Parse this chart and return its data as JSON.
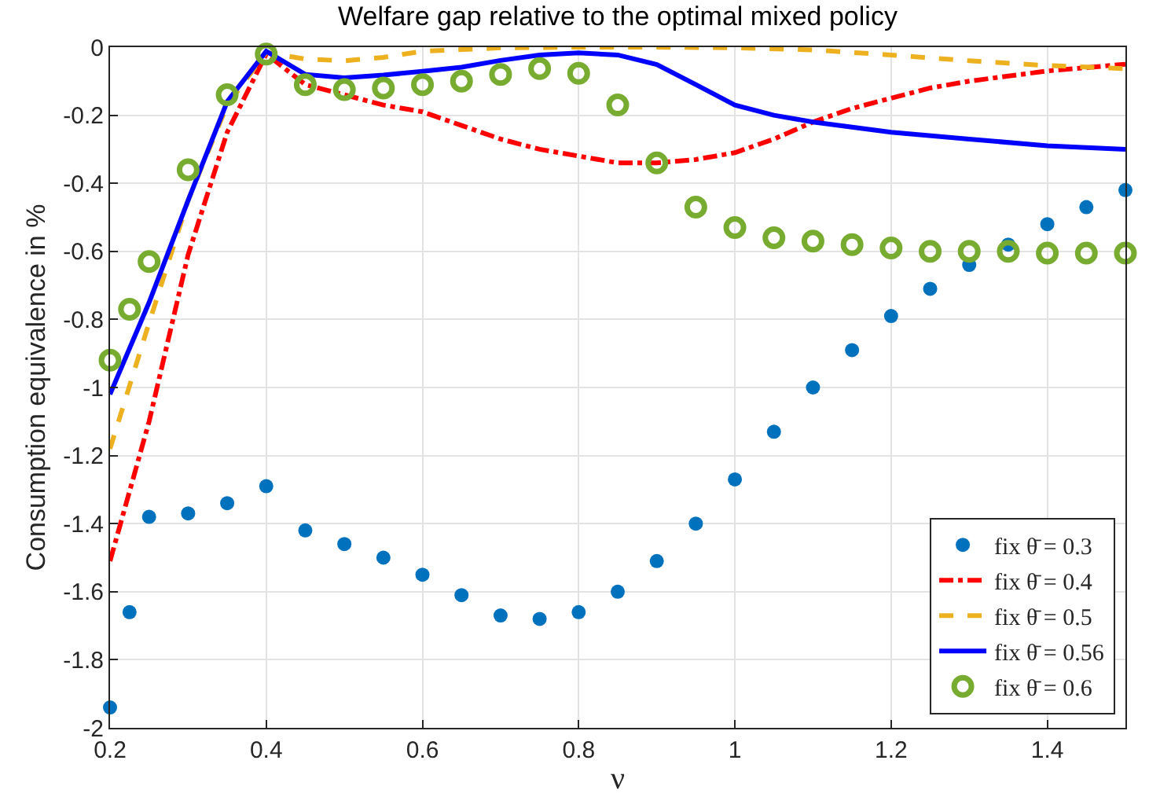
{
  "chart_data": {
    "type": "line",
    "title": "Welfare gap relative to the optimal mixed policy",
    "xlabel": "ν",
    "ylabel": "Consumption equivalence in %",
    "xlim": [
      0.2,
      1.5
    ],
    "ylim": [
      -2,
      0
    ],
    "xticks": [
      0.2,
      0.4,
      0.6,
      0.8,
      1,
      1.2,
      1.4
    ],
    "yticks": [
      -2,
      -1.8,
      -1.6,
      -1.4,
      -1.2,
      -1,
      -0.8,
      -0.6,
      -0.4,
      -0.2,
      0
    ],
    "grid": true,
    "legend": "bottom right",
    "series": [
      {
        "name": "fix θ̄ = 0.3",
        "type": "scatter",
        "marker": "circle",
        "color": "#0072bd",
        "x": [
          0.2,
          0.225,
          0.25,
          0.3,
          0.35,
          0.4,
          0.45,
          0.5,
          0.55,
          0.6,
          0.65,
          0.7,
          0.75,
          0.8,
          0.85,
          0.9,
          0.95,
          1.0,
          1.05,
          1.1,
          1.15,
          1.2,
          1.25,
          1.3,
          1.35,
          1.4,
          1.45,
          1.5
        ],
        "values": [
          -1.94,
          -1.66,
          -1.38,
          -1.37,
          -1.34,
          -1.29,
          -1.42,
          -1.46,
          -1.5,
          -1.55,
          -1.61,
          -1.67,
          -1.68,
          -1.66,
          -1.6,
          -1.51,
          -1.4,
          -1.27,
          -1.13,
          -1.0,
          -0.89,
          -0.79,
          -0.71,
          -0.64,
          -0.58,
          -0.52,
          -0.47,
          -0.42
        ]
      },
      {
        "name": "fix θ̄ = 0.4",
        "line_style": "dashdot",
        "color": "#ff0000",
        "x": [
          0.2,
          0.25,
          0.3,
          0.35,
          0.4,
          0.45,
          0.5,
          0.55,
          0.6,
          0.65,
          0.7,
          0.75,
          0.8,
          0.85,
          0.9,
          0.95,
          1.0,
          1.05,
          1.1,
          1.15,
          1.2,
          1.25,
          1.3,
          1.35,
          1.4,
          1.45,
          1.5
        ],
        "values": [
          -1.51,
          -1.1,
          -0.61,
          -0.25,
          -0.02,
          -0.11,
          -0.14,
          -0.17,
          -0.19,
          -0.23,
          -0.27,
          -0.3,
          -0.32,
          -0.34,
          -0.34,
          -0.33,
          -0.31,
          -0.27,
          -0.22,
          -0.18,
          -0.15,
          -0.12,
          -0.1,
          -0.085,
          -0.07,
          -0.06,
          -0.05
        ]
      },
      {
        "name": "fix θ̄ = 0.5",
        "line_style": "dashed",
        "color": "#edb120",
        "x": [
          0.2,
          0.25,
          0.3,
          0.35,
          0.4,
          0.45,
          0.5,
          0.55,
          0.6,
          0.7,
          0.8,
          0.9,
          1.0,
          1.1,
          1.2,
          1.3,
          1.4,
          1.5
        ],
        "values": [
          -1.18,
          -0.81,
          -0.45,
          -0.17,
          -0.015,
          -0.035,
          -0.04,
          -0.03,
          -0.012,
          -0.002,
          0,
          0,
          -0.002,
          -0.008,
          -0.023,
          -0.04,
          -0.054,
          -0.063
        ]
      },
      {
        "name": "fix θ̄ = 0.56",
        "line_style": "solid",
        "color": "#0000ff",
        "x": [
          0.2,
          0.25,
          0.3,
          0.35,
          0.4,
          0.45,
          0.5,
          0.55,
          0.6,
          0.65,
          0.7,
          0.75,
          0.8,
          0.85,
          0.9,
          0.95,
          1.0,
          1.05,
          1.1,
          1.2,
          1.3,
          1.4,
          1.5
        ],
        "values": [
          -1.02,
          -0.75,
          -0.45,
          -0.16,
          -0.012,
          -0.08,
          -0.09,
          -0.082,
          -0.071,
          -0.059,
          -0.039,
          -0.023,
          -0.017,
          -0.023,
          -0.051,
          -0.11,
          -0.17,
          -0.2,
          -0.22,
          -0.25,
          -0.27,
          -0.29,
          -0.3
        ]
      },
      {
        "name": "fix θ̄ = 0.6",
        "type": "scatter",
        "marker": "circle-open",
        "color": "#77ac30",
        "x": [
          0.2,
          0.225,
          0.25,
          0.3,
          0.35,
          0.4,
          0.45,
          0.5,
          0.55,
          0.6,
          0.65,
          0.7,
          0.75,
          0.8,
          0.85,
          0.9,
          0.95,
          1.0,
          1.05,
          1.1,
          1.15,
          1.2,
          1.25,
          1.3,
          1.35,
          1.4,
          1.45,
          1.5
        ],
        "values": [
          -0.92,
          -0.77,
          -0.63,
          -0.36,
          -0.14,
          -0.02,
          -0.11,
          -0.125,
          -0.12,
          -0.11,
          -0.1,
          -0.08,
          -0.063,
          -0.077,
          -0.17,
          -0.34,
          -0.47,
          -0.53,
          -0.56,
          -0.57,
          -0.58,
          -0.59,
          -0.6,
          -0.6,
          -0.6,
          -0.605,
          -0.605,
          -0.605
        ]
      }
    ]
  }
}
